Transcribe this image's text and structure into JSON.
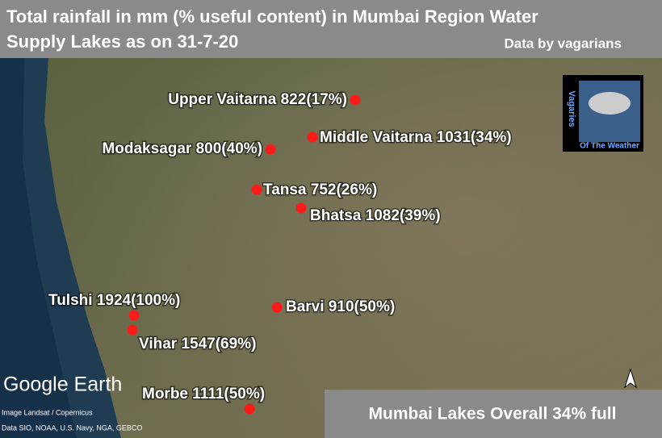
{
  "title": {
    "lines": [
      "Total rainfall in mm (% useful content) in Mumbai Region Water",
      "Supply Lakes as on 31-7-20"
    ],
    "credit": "Data by vagarians"
  },
  "lakes": [
    {
      "label": "Upper Vaitarna 822(17%)"
    },
    {
      "label": "Middle Vaitarna 1031(34%)"
    },
    {
      "label": "Modaksagar 800(40%)"
    },
    {
      "label": "Tansa 752(26%)"
    },
    {
      "label": "Bhatsa 1082(39%)"
    },
    {
      "label": "Tulshi 1924(100%)"
    },
    {
      "label": "Vihar 1547(69%)"
    },
    {
      "label": "Barvi 910(50%)"
    },
    {
      "label": "Morbe 1111(50%)"
    }
  ],
  "summary": "Mumbai Lakes Overall 34% full",
  "logo": {
    "top": "Vagaries",
    "bottom": "Of The Weather"
  },
  "watermark": {
    "brand": "Google Earth",
    "imagery": "Image Landsat / Copernicus",
    "data": "Data SIO, NOAA, U.S. Navy, NGA, GEBCO"
  }
}
